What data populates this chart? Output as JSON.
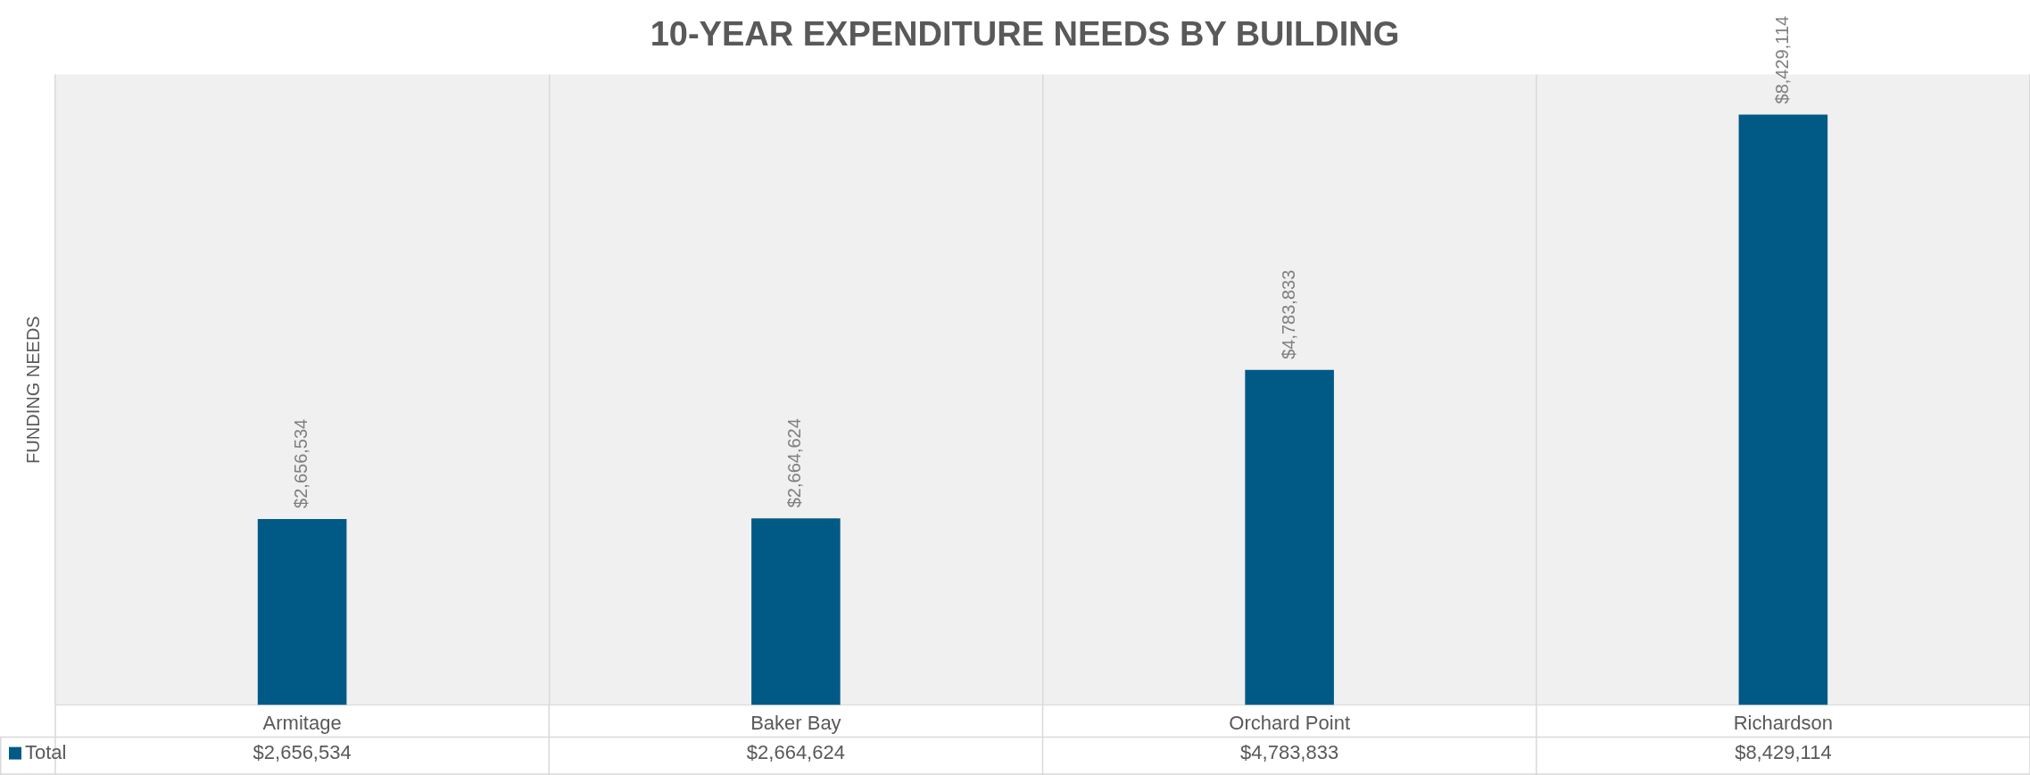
{
  "chart_data": {
    "type": "bar",
    "title": "10-YEAR EXPENDITURE NEEDS BY BUILDING",
    "ylabel": "FUNDING NEEDS",
    "categories": [
      "Armitage",
      "Baker Bay",
      "Orchard Point",
      "Richardson"
    ],
    "series": [
      {
        "name": "Total",
        "color": "#005a85",
        "values": [
          2656534,
          2664624,
          4783833,
          8429114
        ],
        "value_labels": [
          "$2,656,534",
          "$2,664,624",
          "$4,783,833",
          "$8,429,114"
        ]
      }
    ],
    "grid": "x",
    "legend": "bottom"
  }
}
